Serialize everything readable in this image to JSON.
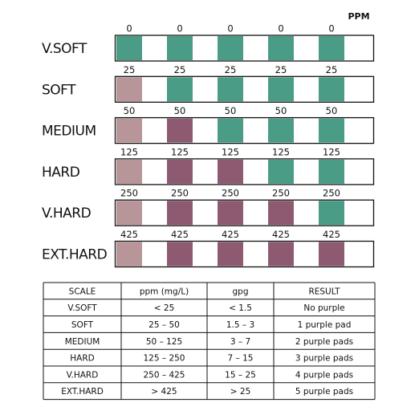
{
  "unit": "PPM",
  "colors": {
    "unused": "#b89599",
    "purple": "#8e5a72",
    "teal": "#4a9c87"
  },
  "strips": [
    {
      "label": "V.SOFT",
      "values": [
        0,
        0,
        0,
        0,
        0
      ],
      "pads": [
        "teal",
        "teal",
        "teal",
        "teal",
        "teal"
      ]
    },
    {
      "label": "SOFT",
      "values": [
        25,
        25,
        25,
        25,
        25
      ],
      "pads": [
        "unused",
        "teal",
        "teal",
        "teal",
        "teal"
      ]
    },
    {
      "label": "MEDIUM",
      "values": [
        50,
        50,
        50,
        50,
        50
      ],
      "pads": [
        "unused",
        "purple",
        "teal",
        "teal",
        "teal"
      ]
    },
    {
      "label": "HARD",
      "values": [
        125,
        125,
        125,
        125,
        125
      ],
      "pads": [
        "unused",
        "purple",
        "purple",
        "teal",
        "teal"
      ]
    },
    {
      "label": "V.HARD",
      "values": [
        250,
        250,
        250,
        250,
        250
      ],
      "pads": [
        "unused",
        "purple",
        "purple",
        "purple",
        "teal"
      ]
    },
    {
      "label": "EXT.HARD",
      "values": [
        425,
        425,
        425,
        425,
        425
      ],
      "pads": [
        "unused",
        "purple",
        "purple",
        "purple",
        "purple"
      ]
    }
  ],
  "table": {
    "header": [
      "SCALE",
      "ppm (mg/L)",
      "gpg",
      "RESULT"
    ],
    "rows": [
      [
        "V.SOFT",
        "< 25",
        "< 1.5",
        "No purple"
      ],
      [
        "SOFT",
        "25 – 50",
        "1.5 – 3",
        "1 purple pad"
      ],
      [
        "MEDIUM",
        "50 – 125",
        "3 – 7",
        "2 purple pads"
      ],
      [
        "HARD",
        "125 – 250",
        "7 – 15",
        "3 purple pads"
      ],
      [
        "V.HARD",
        "250 – 425",
        "15 – 25",
        "4 purple pads"
      ],
      [
        "EXT.HARD",
        "> 425",
        "> 25",
        "5 purple pads"
      ]
    ]
  }
}
